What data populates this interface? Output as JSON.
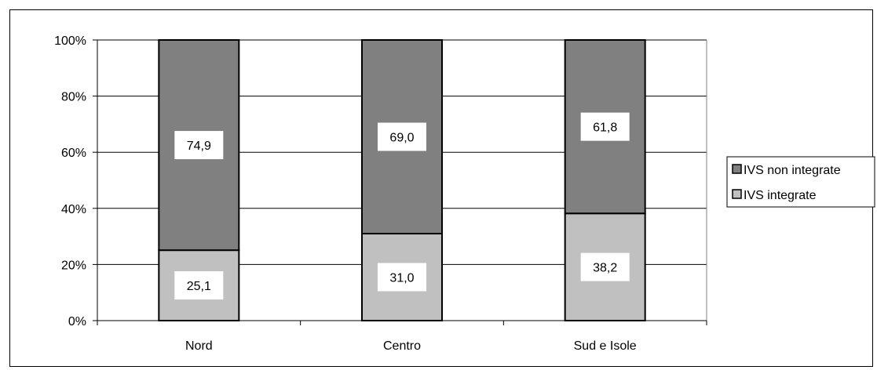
{
  "chart_data": {
    "type": "bar",
    "stacked": true,
    "percent_stacked": true,
    "title": "",
    "xlabel": "",
    "ylabel": "",
    "categories": [
      "Nord",
      "Centro",
      "Sud e Isole"
    ],
    "series": [
      {
        "name": "IVS integrate",
        "values": [
          25.1,
          31.0,
          38.2
        ],
        "labels": [
          "25,1",
          "31,0",
          "38,2"
        ],
        "color": "#C0C0C0"
      },
      {
        "name": "IVS non integrate",
        "values": [
          74.9,
          69.0,
          61.8
        ],
        "labels": [
          "74,9",
          "69,0",
          "61,8"
        ],
        "color": "#808080"
      }
    ],
    "ylim": [
      0,
      100
    ],
    "yticks": [
      "0%",
      "20%",
      "40%",
      "60%",
      "80%",
      "100%"
    ],
    "grid": true,
    "legend_position": "right",
    "legend_order": [
      "IVS non integrate",
      "IVS integrate"
    ]
  }
}
